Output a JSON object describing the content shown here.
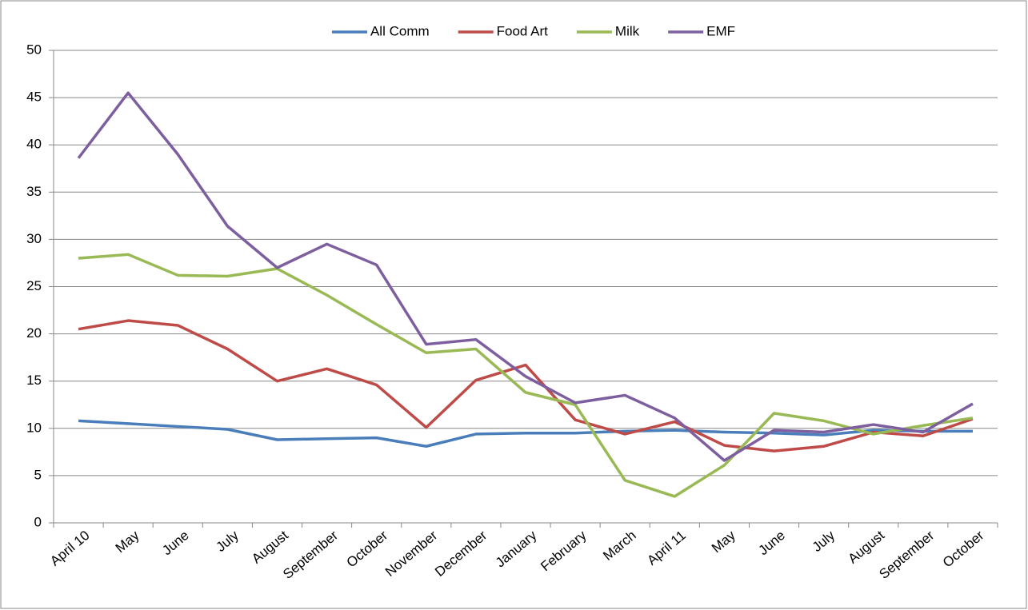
{
  "chart_data": {
    "type": "line",
    "categories": [
      "April 10",
      "May",
      "June",
      "July",
      "August",
      "September",
      "October",
      "November",
      "December",
      "January",
      "February",
      "March",
      "April  11",
      "May",
      "June",
      "July",
      "August",
      "September",
      "October"
    ],
    "series": [
      {
        "name": "All Comm",
        "color": "#4a7ebb",
        "values": [
          10.8,
          10.5,
          10.2,
          9.9,
          8.8,
          8.9,
          9.0,
          8.1,
          9.4,
          9.5,
          9.5,
          9.7,
          9.8,
          9.6,
          9.5,
          9.3,
          9.8,
          9.7,
          9.7
        ]
      },
      {
        "name": "Food Art",
        "color": "#be4b48",
        "values": [
          20.5,
          21.4,
          20.9,
          18.4,
          15.0,
          16.3,
          14.6,
          10.1,
          15.1,
          16.7,
          10.9,
          9.4,
          10.7,
          8.2,
          7.6,
          8.1,
          9.6,
          9.2,
          11.0
        ]
      },
      {
        "name": "Milk",
        "color": "#98b954",
        "values": [
          28.0,
          28.4,
          26.2,
          26.1,
          26.9,
          24.1,
          21.0,
          18.0,
          18.4,
          13.8,
          12.5,
          4.5,
          2.8,
          6.1,
          11.6,
          10.8,
          9.4,
          10.3,
          11.1
        ]
      },
      {
        "name": "EMF",
        "color": "#7d5fa0",
        "values": [
          38.6,
          45.5,
          39.0,
          31.4,
          27.0,
          29.5,
          27.3,
          18.9,
          19.4,
          15.5,
          12.7,
          13.5,
          11.1,
          6.6,
          9.8,
          9.6,
          10.4,
          9.6,
          12.6
        ]
      }
    ],
    "ylim": [
      0,
      50
    ],
    "yticks": [
      0,
      5,
      10,
      15,
      20,
      25,
      30,
      35,
      40,
      45,
      50
    ],
    "grid": true,
    "legend": "top"
  }
}
